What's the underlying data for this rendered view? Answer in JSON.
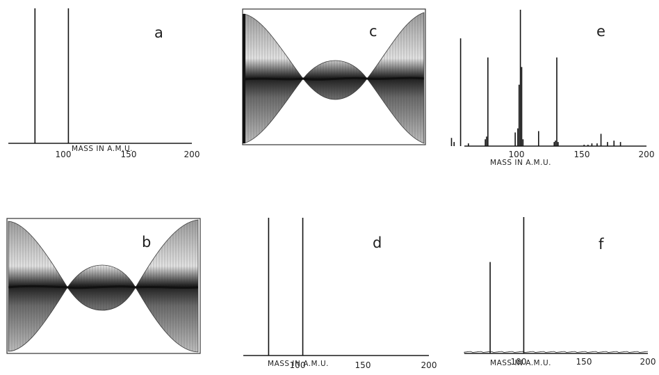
{
  "figure": {
    "background": "#ffffff",
    "ink_color": "#111111"
  },
  "chart_data": [
    {
      "panel": "a",
      "type": "bar",
      "xlabel": "MASS IN A.M.U.",
      "xticks": [
        "100",
        "150",
        "200"
      ],
      "xlim": [
        45,
        200
      ],
      "ylim": [
        0,
        100
      ],
      "x": [
        78,
        104
      ],
      "values": [
        100,
        100
      ],
      "grid": false
    },
    {
      "panel": "b",
      "type": "other",
      "description_kind": "oscilloscope envelope image",
      "lobes": 3
    },
    {
      "panel": "c",
      "type": "other",
      "description_kind": "oscilloscope envelope image",
      "lobes": 3
    },
    {
      "panel": "d",
      "type": "bar",
      "xlabel": "MASS IN A.M.U.",
      "xticks": [
        "100",
        "150",
        "200"
      ],
      "xlim": [
        45,
        200
      ],
      "ylim": [
        0,
        100
      ],
      "x": [
        78,
        104
      ],
      "values": [
        100,
        100
      ],
      "grid": false
    },
    {
      "panel": "e",
      "type": "bar",
      "xlabel": "MASS IN A.M.U.",
      "xticks": [
        "100",
        "150",
        "200"
      ],
      "xlim": [
        45,
        200
      ],
      "ylim": [
        0,
        100
      ],
      "x": [
        50,
        52,
        57,
        63,
        76,
        77,
        78,
        99,
        101,
        102,
        103,
        104,
        105,
        117,
        129,
        130,
        131,
        132,
        152,
        155,
        158,
        162,
        165,
        170,
        175,
        180
      ],
      "values": [
        6,
        3,
        79,
        2,
        5,
        7,
        65,
        10,
        13,
        45,
        100,
        58,
        5,
        11,
        3,
        4,
        65,
        3,
        1,
        1,
        2,
        2,
        9,
        3,
        4,
        3
      ],
      "grid": false
    },
    {
      "panel": "f",
      "type": "bar",
      "xlabel": "MASS IN A.M.U.",
      "xticks": [
        "100",
        "150",
        "200"
      ],
      "xlim": [
        45,
        200
      ],
      "ylim": [
        0,
        100
      ],
      "x": [
        78,
        104
      ],
      "values": [
        67,
        100
      ],
      "baseline_noise": true,
      "grid": false
    }
  ]
}
